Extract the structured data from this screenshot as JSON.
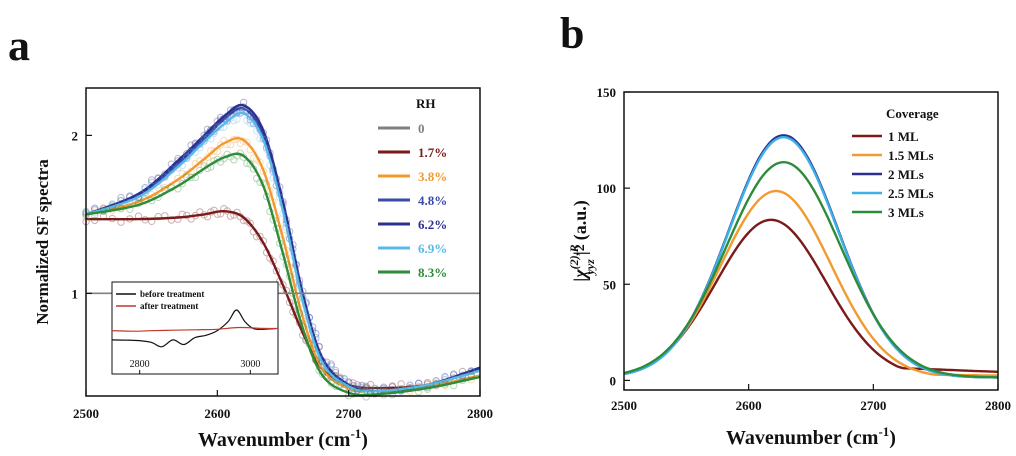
{
  "panels": {
    "a": {
      "letter": "a"
    },
    "b": {
      "letter": "b"
    }
  },
  "chart_data": [
    {
      "type": "line",
      "panel": "a",
      "xlabel": "Wavenumber (cm",
      "xlabel_sup": "-1",
      "xlabel_close": ")",
      "ylabel": "Normalized SF spectra",
      "xlim": [
        2500,
        2800
      ],
      "ylim": [
        0.35,
        2.3
      ],
      "log_y": false,
      "xticks": [
        "2500",
        "2600",
        "2700",
        "2800"
      ],
      "yticks": [
        {
          "value": 1,
          "label": "1"
        },
        {
          "value": 2,
          "label": "2"
        }
      ],
      "reference_line": 1,
      "legend_title": "RH",
      "legend_position": "right",
      "series": [
        {
          "name": "0",
          "color": "#808080",
          "x": [
            2500,
            2560,
            2600,
            2625,
            2650,
            2680,
            2700,
            2740,
            2800
          ],
          "y": [
            1,
            1,
            1,
            1,
            1,
            1,
            1,
            1,
            1
          ]
        },
        {
          "name": "1.7%",
          "color": "#7a1a1a",
          "x": [
            2500,
            2540,
            2570,
            2590,
            2605,
            2620,
            2635,
            2650,
            2665,
            2680,
            2700,
            2720,
            2760,
            2800
          ],
          "y": [
            1.47,
            1.47,
            1.48,
            1.5,
            1.52,
            1.48,
            1.32,
            1.05,
            0.75,
            0.52,
            0.42,
            0.4,
            0.42,
            0.52
          ]
        },
        {
          "name": "3.8%",
          "color": "#f39a2e",
          "x": [
            2500,
            2540,
            2570,
            2590,
            2605,
            2620,
            2635,
            2650,
            2665,
            2680,
            2700,
            2720,
            2760,
            2800
          ],
          "y": [
            1.5,
            1.58,
            1.72,
            1.85,
            1.95,
            1.97,
            1.78,
            1.35,
            0.85,
            0.52,
            0.4,
            0.38,
            0.41,
            0.48
          ]
        },
        {
          "name": "4.8%",
          "color": "#3a4aa8",
          "x": [
            2500,
            2540,
            2570,
            2590,
            2605,
            2620,
            2635,
            2650,
            2665,
            2680,
            2700,
            2720,
            2760,
            2800
          ],
          "y": [
            1.5,
            1.62,
            1.82,
            1.98,
            2.1,
            2.17,
            2.0,
            1.55,
            0.98,
            0.58,
            0.42,
            0.38,
            0.42,
            0.52
          ]
        },
        {
          "name": "6.2%",
          "color": "#2b2f8f",
          "x": [
            2500,
            2540,
            2570,
            2590,
            2605,
            2620,
            2635,
            2650,
            2665,
            2680,
            2700,
            2720,
            2760,
            2800
          ],
          "y": [
            1.5,
            1.63,
            1.84,
            2.0,
            2.12,
            2.19,
            2.03,
            1.58,
            1.0,
            0.59,
            0.42,
            0.38,
            0.42,
            0.53
          ]
        },
        {
          "name": "6.9%",
          "color": "#5bb9e8",
          "x": [
            2500,
            2540,
            2570,
            2590,
            2605,
            2620,
            2635,
            2650,
            2665,
            2680,
            2700,
            2720,
            2760,
            2800
          ],
          "y": [
            1.5,
            1.61,
            1.8,
            1.96,
            2.07,
            2.14,
            1.97,
            1.52,
            0.95,
            0.56,
            0.41,
            0.38,
            0.42,
            0.51
          ]
        },
        {
          "name": "8.3%",
          "color": "#2e8b3a",
          "x": [
            2500,
            2540,
            2570,
            2590,
            2605,
            2620,
            2635,
            2650,
            2665,
            2680,
            2700,
            2720,
            2760,
            2800
          ],
          "y": [
            1.5,
            1.56,
            1.68,
            1.79,
            1.86,
            1.87,
            1.68,
            1.25,
            0.78,
            0.48,
            0.37,
            0.36,
            0.4,
            0.47
          ]
        }
      ],
      "inset": {
        "xlim": [
          2750,
          3050
        ],
        "xticks": [
          "2800",
          "3000"
        ],
        "legend": [
          {
            "name": "before treatment",
            "color": "#111111"
          },
          {
            "name": "after treatment",
            "color": "#c0392b"
          }
        ],
        "series": [
          {
            "name": "before treatment",
            "color": "#111111",
            "x": [
              2750,
              2790,
              2820,
              2840,
              2860,
              2880,
              2900,
              2920,
              2940,
              2960,
              2975,
              2990,
              3005,
              3020,
              3050
            ],
            "y": [
              0.35,
              0.34,
              0.3,
              0.2,
              0.35,
              0.25,
              0.4,
              0.45,
              0.55,
              0.75,
              1.0,
              0.75,
              0.6,
              0.58,
              0.6
            ]
          },
          {
            "name": "after treatment",
            "color": "#c0392b",
            "x": [
              2750,
              2790,
              2820,
              2860,
              2900,
              2940,
              2980,
              3020,
              3050
            ],
            "y": [
              0.55,
              0.54,
              0.55,
              0.56,
              0.57,
              0.58,
              0.62,
              0.6,
              0.6
            ]
          }
        ]
      }
    },
    {
      "type": "line",
      "panel": "b",
      "xlabel": "Wavenumber (cm",
      "xlabel_sup": "-1",
      "xlabel_close": ")",
      "ylabel": "|χ(2),R yyz|2 (a.u.)",
      "ylabel_parts": {
        "bar": "|",
        "chi": "χ",
        "sup": "(2),R",
        "sub": "yyz",
        "bar2": "|",
        "pow": "2",
        "unit": "(a.u.)"
      },
      "xlim": [
        2500,
        2800
      ],
      "ylim": [
        -5,
        150
      ],
      "xticks": [
        "2500",
        "2600",
        "2700",
        "2800"
      ],
      "yticks": [
        {
          "value": 0,
          "label": "0"
        },
        {
          "value": 50,
          "label": "50"
        },
        {
          "value": 100,
          "label": "100"
        },
        {
          "value": 150,
          "label": "150"
        }
      ],
      "legend_title": "Coverage",
      "legend_position": "top-right",
      "series": [
        {
          "name": "1 ML",
          "color": "#7a1a1a",
          "peak_x": 2618,
          "peak_y": 82,
          "width": 44,
          "tail": 1.5
        },
        {
          "name": "1.5 MLs",
          "color": "#f39a2e",
          "peak_x": 2622,
          "peak_y": 97,
          "width": 44,
          "tail": 0.5
        },
        {
          "name": "2 MLs",
          "color": "#2b2f8f",
          "peak_x": 2628,
          "peak_y": 126,
          "width": 44,
          "tail": 0
        },
        {
          "name": "2.5 MLs",
          "color": "#3fb0e6",
          "peak_x": 2628,
          "peak_y": 125,
          "width": 44,
          "tail": 0
        },
        {
          "name": "3 MLs",
          "color": "#2e8b3a",
          "peak_x": 2628,
          "peak_y": 112,
          "width": 46,
          "tail": 0
        }
      ]
    }
  ]
}
